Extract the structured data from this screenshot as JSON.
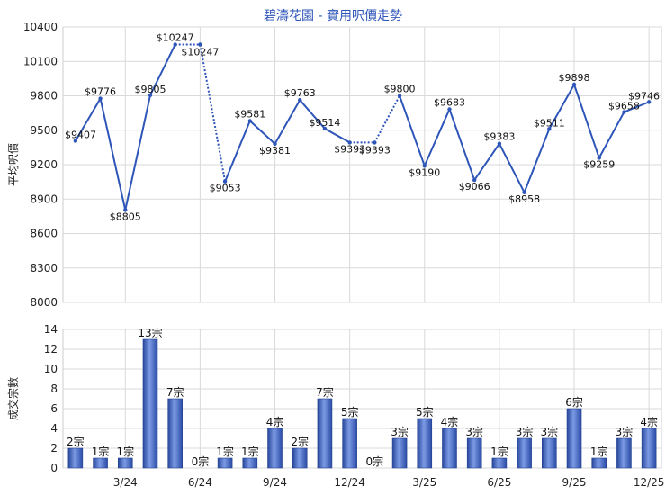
{
  "chart_data": [
    {
      "type": "line",
      "title": "碧濤花園 - 實用呎價走勢",
      "ylabel": "平均呎價",
      "ylim": [
        8000,
        10400
      ],
      "yticks": [
        8000,
        8300,
        8600,
        8900,
        9200,
        9500,
        9800,
        10100,
        10400
      ],
      "grid": true,
      "color": "#2e55b8",
      "x": [
        "1/24",
        "2/24",
        "3/24",
        "4/24",
        "5/24",
        "6/24",
        "7/24",
        "8/24",
        "9/24",
        "10/24",
        "11/24",
        "12/24",
        "1/25",
        "2/25",
        "3/25",
        "4/25",
        "5/25",
        "6/25",
        "7/25",
        "8/25",
        "9/25",
        "10/25",
        "11/25",
        "12/25"
      ],
      "values": [
        9407,
        9776,
        8805,
        9805,
        10247,
        10247,
        9053,
        9581,
        9381,
        9763,
        9514,
        9393,
        9393,
        9800,
        9190,
        9683,
        9066,
        9383,
        8958,
        9511,
        9898,
        9259,
        9658,
        9746
      ],
      "data_labels": [
        "$9407",
        "$9776",
        "$8805",
        "$9805",
        "$10247",
        "$10247",
        "$9053",
        "$9581",
        "$9381",
        "$9763",
        "$9514",
        "$9393",
        "$9393",
        "$9800",
        "$9190",
        "$9683",
        "$9066",
        "$9383",
        "$8958",
        "$9511",
        "$9898",
        "$9259",
        "$9658",
        "$9746"
      ],
      "estimated_months": [
        5,
        12
      ]
    },
    {
      "type": "bar",
      "ylabel": "成交宗數",
      "ylim": [
        0,
        14
      ],
      "yticks": [
        0,
        2,
        4,
        6,
        8,
        10,
        12,
        14
      ],
      "grid": true,
      "color": "#3e63c4",
      "categories": [
        "1/24",
        "2/24",
        "3/24",
        "4/24",
        "5/24",
        "6/24",
        "7/24",
        "8/24",
        "9/24",
        "10/24",
        "11/24",
        "12/24",
        "1/25",
        "2/25",
        "3/25",
        "4/25",
        "5/25",
        "6/25",
        "7/25",
        "8/25",
        "9/25",
        "10/25",
        "11/25",
        "12/25"
      ],
      "values": [
        2,
        1,
        1,
        13,
        7,
        0,
        1,
        1,
        4,
        2,
        7,
        5,
        0,
        3,
        5,
        4,
        3,
        1,
        3,
        3,
        6,
        1,
        3,
        4
      ],
      "data_labels": [
        "2宗",
        "1宗",
        "1宗",
        "13宗",
        "7宗",
        "0宗",
        "1宗",
        "1宗",
        "4宗",
        "2宗",
        "7宗",
        "5宗",
        "0宗",
        "3宗",
        "5宗",
        "4宗",
        "3宗",
        "1宗",
        "3宗",
        "3宗",
        "6宗",
        "1宗",
        "3宗",
        "4宗"
      ],
      "xticks": [
        "3/24",
        "6/24",
        "9/24",
        "12/24",
        "3/25",
        "6/25",
        "9/25",
        "12/25"
      ]
    }
  ]
}
